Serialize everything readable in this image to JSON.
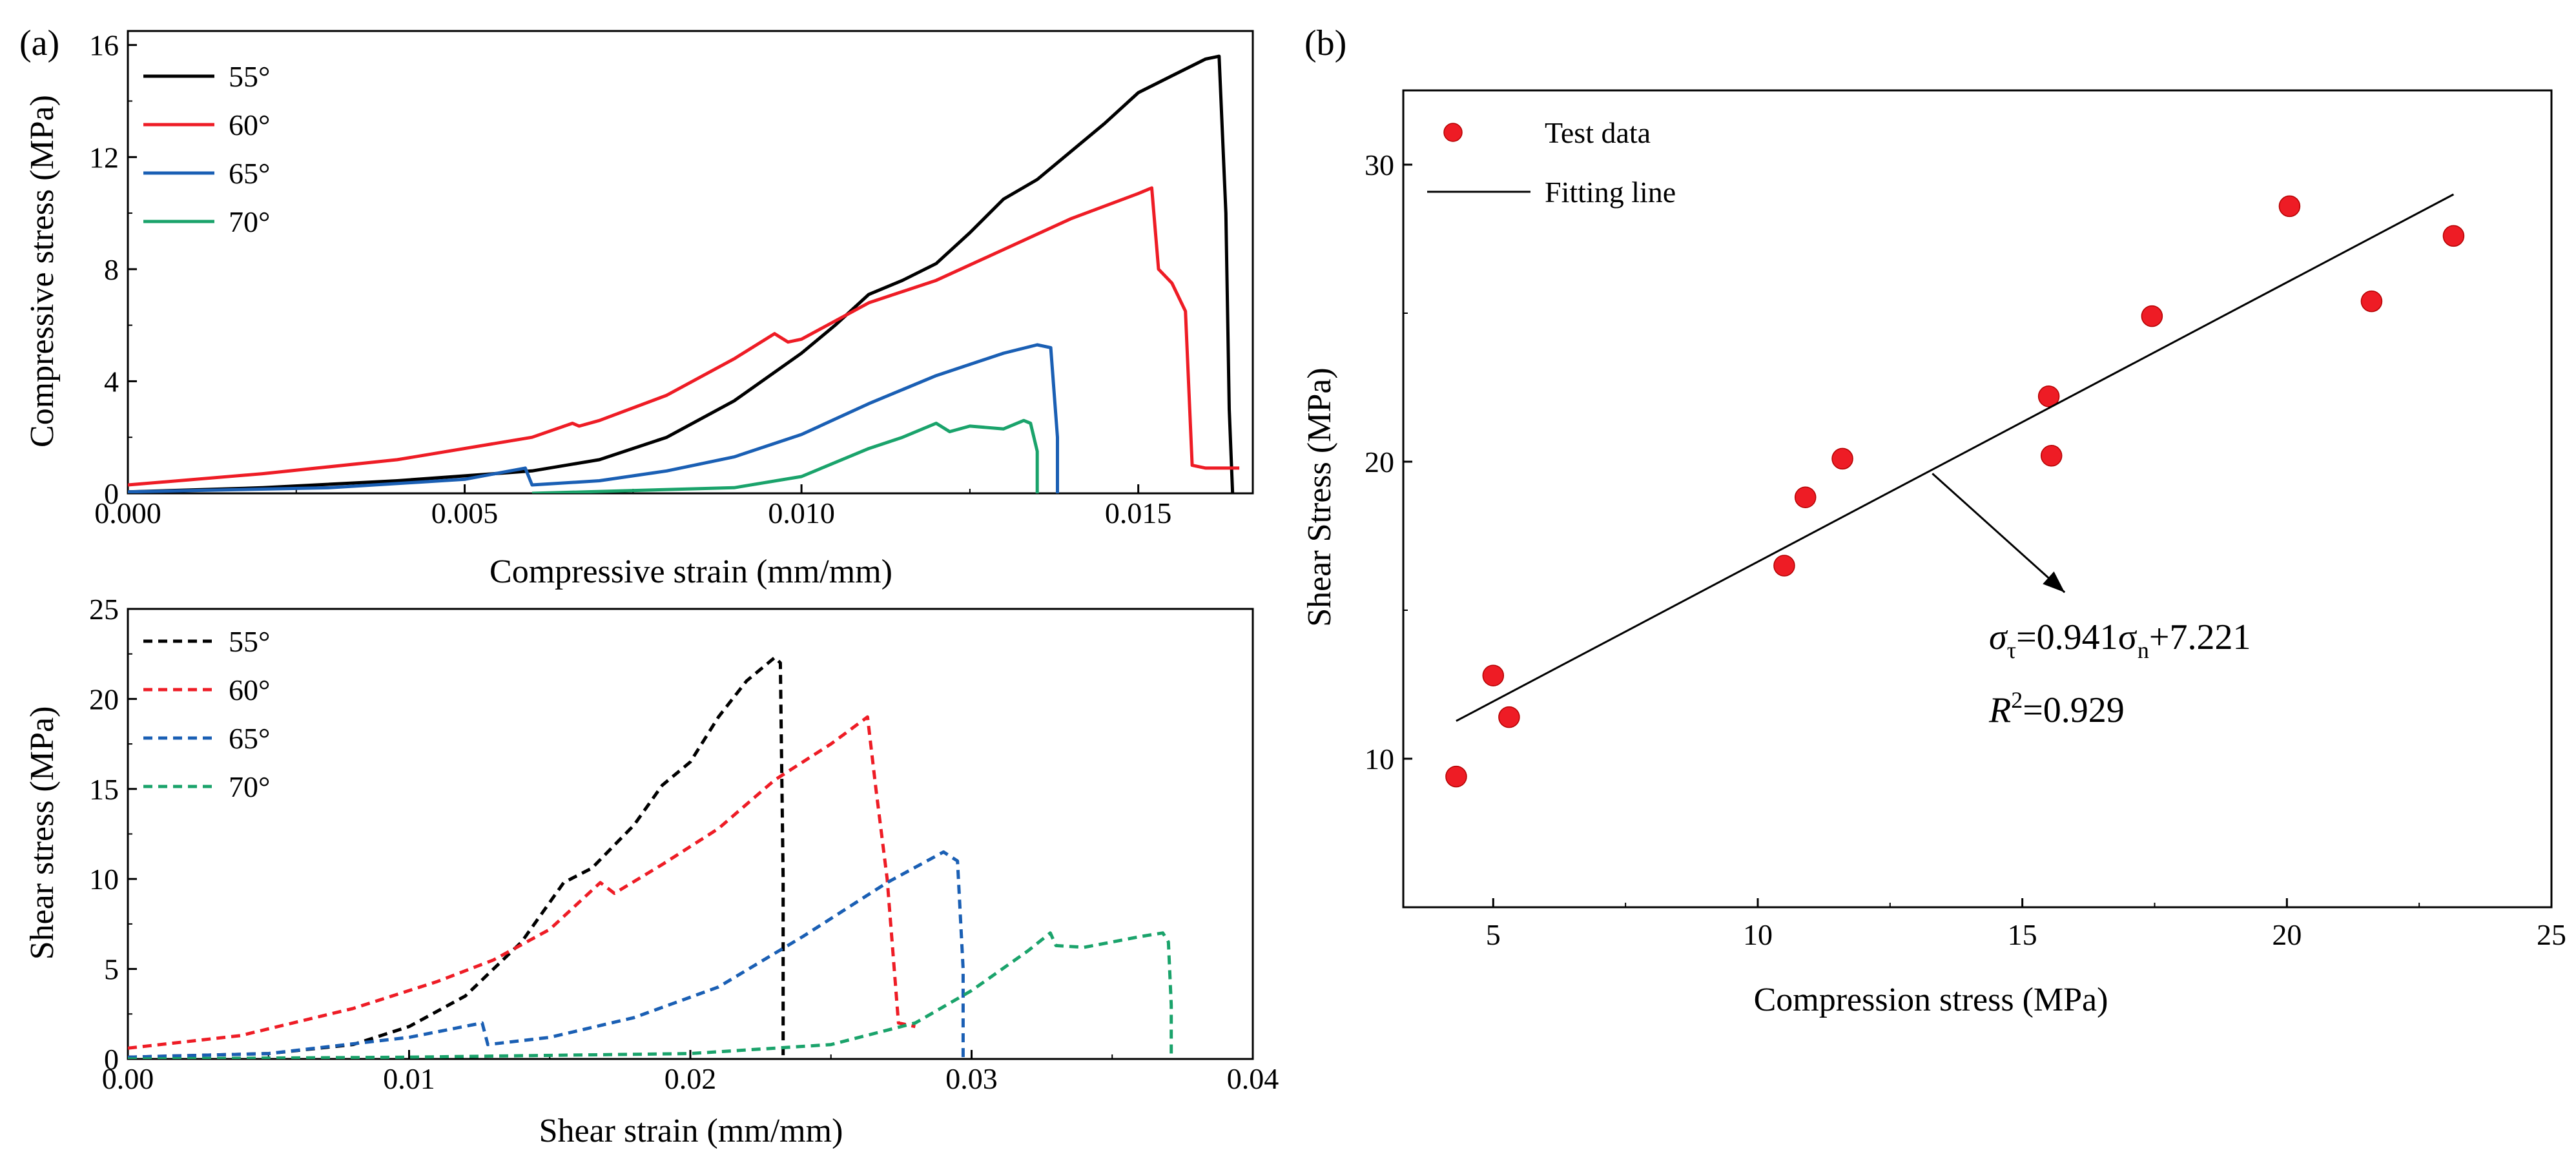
{
  "chart_data": [
    {
      "panel": "(a)",
      "type": "line",
      "xlabel": "Compressive strain (mm/mm)",
      "ylabel": "Compressive stress (MPa)",
      "xlim": [
        0,
        0.0167
      ],
      "ylim": [
        0,
        16.5
      ],
      "xticks": [
        {
          "value": 0,
          "label": "0.000"
        },
        {
          "value": 0.005,
          "label": "0.005"
        },
        {
          "value": 0.01,
          "label": "0.010"
        },
        {
          "value": 0.015,
          "label": "0.015"
        }
      ],
      "yticks": [
        {
          "value": 0,
          "label": "0"
        },
        {
          "value": 4,
          "label": "4"
        },
        {
          "value": 8,
          "label": "8"
        },
        {
          "value": 12,
          "label": "12"
        },
        {
          "value": 16,
          "label": "16"
        }
      ],
      "legend_position": "top-left",
      "series": [
        {
          "name": "55°",
          "color": "#000000",
          "dashed": false,
          "x": [
            0,
            0.002,
            0.004,
            0.006,
            0.007,
            0.008,
            0.009,
            0.01,
            0.0105,
            0.011,
            0.0115,
            0.012,
            0.0125,
            0.013,
            0.0135,
            0.014,
            0.0145,
            0.015,
            0.0155,
            0.016,
            0.0162,
            0.0163,
            0.01635,
            0.0164
          ],
          "y": [
            0.05,
            0.2,
            0.45,
            0.8,
            1.2,
            2.0,
            3.3,
            5.0,
            6.0,
            7.1,
            7.6,
            8.2,
            9.3,
            10.5,
            11.2,
            12.2,
            13.2,
            14.3,
            14.9,
            15.5,
            15.6,
            10,
            3,
            0
          ]
        },
        {
          "name": "60°",
          "color": "#ee1c25",
          "dashed": false,
          "x": [
            0,
            0.002,
            0.004,
            0.006,
            0.0066,
            0.0067,
            0.007,
            0.008,
            0.009,
            0.0096,
            0.0098,
            0.01,
            0.011,
            0.012,
            0.013,
            0.014,
            0.015,
            0.0152,
            0.0153,
            0.0155,
            0.0157,
            0.0158,
            0.016,
            0.0165
          ],
          "y": [
            0.3,
            0.7,
            1.2,
            2.0,
            2.5,
            2.4,
            2.6,
            3.5,
            4.8,
            5.7,
            5.4,
            5.5,
            6.8,
            7.6,
            8.7,
            9.8,
            10.7,
            10.9,
            8.0,
            7.5,
            6.5,
            1.0,
            0.9,
            0.9
          ]
        },
        {
          "name": "65°",
          "color": "#1a5fb4",
          "dashed": false,
          "x": [
            0,
            0.003,
            0.005,
            0.0059,
            0.006,
            0.007,
            0.008,
            0.009,
            0.01,
            0.011,
            0.012,
            0.013,
            0.0135,
            0.0137,
            0.0138,
            0.0138
          ],
          "y": [
            0.05,
            0.2,
            0.5,
            0.9,
            0.3,
            0.45,
            0.8,
            1.3,
            2.1,
            3.2,
            4.2,
            5.0,
            5.3,
            5.2,
            2.0,
            0
          ]
        },
        {
          "name": "70°",
          "color": "#1aa36b",
          "dashed": false,
          "x": [
            0.006,
            0.009,
            0.01,
            0.011,
            0.0115,
            0.012,
            0.0122,
            0.0125,
            0.013,
            0.0133,
            0.0134,
            0.0135,
            0.0135
          ],
          "y": [
            0.0,
            0.2,
            0.6,
            1.6,
            2.0,
            2.5,
            2.2,
            2.4,
            2.3,
            2.6,
            2.5,
            1.5,
            0
          ]
        }
      ]
    },
    {
      "panel": "",
      "type": "line",
      "xlabel": "Shear strain (mm/mm)",
      "ylabel": "Shear stress (MPa)",
      "xlim": [
        0,
        0.04
      ],
      "ylim": [
        0,
        25
      ],
      "xticks": [
        {
          "value": 0,
          "label": "0.00"
        },
        {
          "value": 0.01,
          "label": "0.01"
        },
        {
          "value": 0.02,
          "label": "0.02"
        },
        {
          "value": 0.03,
          "label": "0.03"
        },
        {
          "value": 0.04,
          "label": "0.04"
        }
      ],
      "yticks": [
        {
          "value": 0,
          "label": "0"
        },
        {
          "value": 5,
          "label": "5"
        },
        {
          "value": 10,
          "label": "10"
        },
        {
          "value": 15,
          "label": "15"
        },
        {
          "value": 20,
          "label": "20"
        },
        {
          "value": 25,
          "label": "25"
        }
      ],
      "legend_position": "top-left",
      "series": [
        {
          "name": "55°",
          "color": "#000000",
          "dashed": true,
          "x": [
            0,
            0.005,
            0.008,
            0.01,
            0.012,
            0.014,
            0.0155,
            0.0165,
            0.018,
            0.019,
            0.02,
            0.021,
            0.022,
            0.023,
            0.0232,
            0.0233,
            0.0233
          ],
          "y": [
            0.1,
            0.3,
            0.8,
            1.8,
            3.5,
            6.5,
            9.8,
            10.6,
            13.0,
            15.2,
            16.5,
            19.0,
            21.0,
            22.3,
            22.0,
            10,
            0
          ]
        },
        {
          "name": "60°",
          "color": "#ee1c25",
          "dashed": true,
          "x": [
            0,
            0.004,
            0.008,
            0.011,
            0.013,
            0.015,
            0.0168,
            0.0173,
            0.019,
            0.021,
            0.023,
            0.025,
            0.0263,
            0.0266,
            0.027,
            0.0274,
            0.028
          ],
          "y": [
            0.6,
            1.3,
            2.8,
            4.3,
            5.5,
            7.2,
            9.8,
            9.2,
            10.8,
            12.8,
            15.5,
            17.5,
            19.0,
            15.0,
            10.0,
            2.0,
            1.8
          ]
        },
        {
          "name": "65°",
          "color": "#1a5fb4",
          "dashed": true,
          "x": [
            0,
            0.005,
            0.01,
            0.0126,
            0.0128,
            0.015,
            0.018,
            0.021,
            0.024,
            0.027,
            0.029,
            0.0295,
            0.0297,
            0.0297
          ],
          "y": [
            0.1,
            0.3,
            1.2,
            2.0,
            0.8,
            1.2,
            2.3,
            4.0,
            6.8,
            9.8,
            11.5,
            11.0,
            5.0,
            0
          ]
        },
        {
          "name": "70°",
          "color": "#1aa36b",
          "dashed": true,
          "x": [
            0,
            0.01,
            0.02,
            0.025,
            0.028,
            0.03,
            0.032,
            0.0328,
            0.033,
            0.034,
            0.035,
            0.036,
            0.0368,
            0.037,
            0.0371,
            0.0371
          ],
          "y": [
            0.0,
            0.1,
            0.3,
            0.8,
            2.0,
            3.8,
            6.0,
            7.0,
            6.3,
            6.2,
            6.5,
            6.8,
            7.0,
            6.5,
            3.0,
            0
          ]
        }
      ]
    },
    {
      "panel": "(b)",
      "type": "scatter",
      "xlabel": "Compression stress (MPa)",
      "ylabel": "Shear Stress (MPa)",
      "xlim": [
        3.3,
        25
      ],
      "ylim": [
        5,
        32.5
      ],
      "xticks": [
        {
          "value": 5,
          "label": "5"
        },
        {
          "value": 10,
          "label": "10"
        },
        {
          "value": 15,
          "label": "15"
        },
        {
          "value": 20,
          "label": "20"
        },
        {
          "value": 25,
          "label": "25"
        }
      ],
      "yticks": [
        {
          "value": 10,
          "label": "10"
        },
        {
          "value": 20,
          "label": "20"
        },
        {
          "value": 30,
          "label": "30"
        }
      ],
      "legend_position": "top-left",
      "series": [
        {
          "name": "Test data",
          "kind": "points",
          "color": "#ee1c25",
          "x": [
            4.3,
            5.0,
            5.3,
            10.5,
            10.9,
            11.6,
            15.5,
            15.55,
            17.45,
            20.05,
            21.6,
            23.15
          ],
          "y": [
            9.4,
            12.8,
            11.4,
            16.5,
            18.8,
            20.1,
            22.2,
            20.2,
            24.9,
            28.6,
            25.4,
            27.6
          ]
        },
        {
          "name": "Fitting line",
          "kind": "line",
          "color": "#000000",
          "x": [
            4.3,
            23.15
          ],
          "y": [
            11.27,
            29.0
          ]
        }
      ],
      "annotation": {
        "equation_prefix": "σ",
        "equation_sub1": "τ",
        "equation_mid": "=0.941σ",
        "equation_sub2": "n",
        "equation_suffix": "+7.221",
        "r2_prefix": "R",
        "r2_sup": "2",
        "r2_suffix": "=0.929",
        "arrow_from": [
          13.3,
          19.6
        ],
        "arrow_to": [
          15.8,
          15.6
        ]
      }
    }
  ]
}
